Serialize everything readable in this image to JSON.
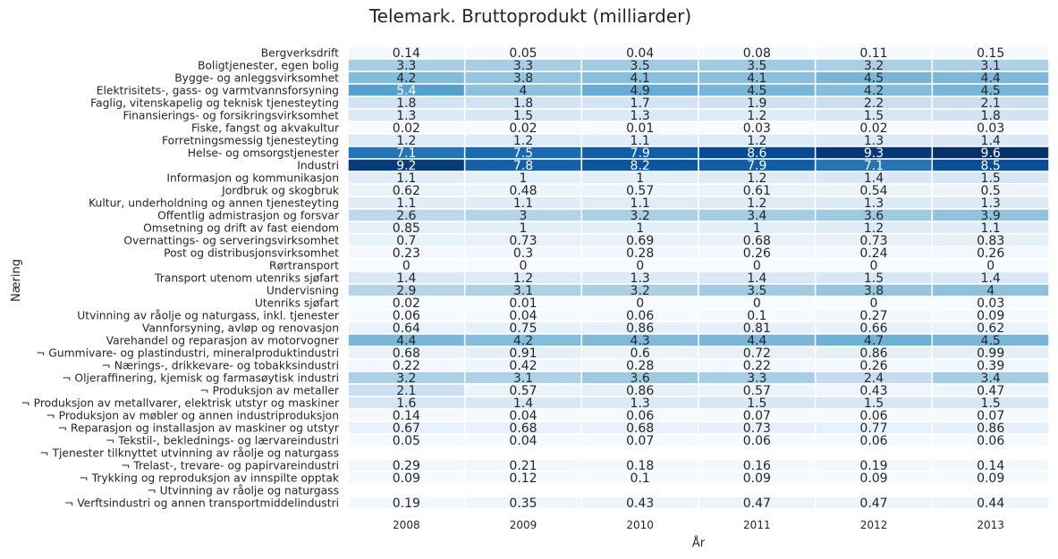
{
  "chart_data": {
    "type": "heatmap",
    "title": "Telemark. Bruttoprodukt (milliarder)",
    "xlabel": "År",
    "ylabel": "Næring",
    "colormap": "Blues",
    "vmin": 0,
    "vmax": 9.6,
    "x": [
      "2008",
      "2009",
      "2010",
      "2011",
      "2012",
      "2013"
    ],
    "rows": [
      {
        "label": "Bergverksdrift",
        "values": [
          "0.14",
          "0.05",
          "0.04",
          "0.08",
          "0.11",
          "0.15"
        ]
      },
      {
        "label": "Boligtjenester, egen bolig",
        "values": [
          "3.3",
          "3.3",
          "3.5",
          "3.5",
          "3.2",
          "3.1"
        ]
      },
      {
        "label": "Bygge- og anleggsvirksomhet",
        "values": [
          "4.2",
          "3.8",
          "4.1",
          "4.1",
          "4.5",
          "4.4"
        ]
      },
      {
        "label": "Elektrisitets-, gass- og varmtvannsforsyning",
        "values": [
          "5.4",
          "4",
          "4.9",
          "4.5",
          "4.2",
          "4.5"
        ]
      },
      {
        "label": "Faglig, vitenskapelig og teknisk tjenesteyting",
        "values": [
          "1.8",
          "1.8",
          "1.7",
          "1.9",
          "2.2",
          "2.1"
        ]
      },
      {
        "label": "Finansierings- og forsikringsvirksomhet",
        "values": [
          "1.3",
          "1.5",
          "1.3",
          "1.2",
          "1.5",
          "1.8"
        ]
      },
      {
        "label": "Fiske, fangst og akvakultur",
        "values": [
          "0.02",
          "0.02",
          "0.01",
          "0.03",
          "0.02",
          "0.03"
        ]
      },
      {
        "label": "Forretningsmessig tjenesteyting",
        "values": [
          "1.2",
          "1.2",
          "1.1",
          "1.2",
          "1.3",
          "1.4"
        ]
      },
      {
        "label": "Helse- og omsorgstjenester",
        "values": [
          "7.1",
          "7.5",
          "7.9",
          "8.6",
          "9.3",
          "9.6"
        ]
      },
      {
        "label": "Industri",
        "values": [
          "9.2",
          "7.8",
          "8.2",
          "7.9",
          "7.1",
          "8.5"
        ]
      },
      {
        "label": "Informasjon og kommunikasjon",
        "values": [
          "1.1",
          "1",
          "1",
          "1.2",
          "1.4",
          "1.5"
        ]
      },
      {
        "label": "Jordbruk og skogbruk",
        "values": [
          "0.62",
          "0.48",
          "0.57",
          "0.61",
          "0.54",
          "0.5"
        ]
      },
      {
        "label": "Kultur, underholdning og annen tjenesteyting",
        "values": [
          "1.1",
          "1.1",
          "1.1",
          "1.2",
          "1.3",
          "1.3"
        ]
      },
      {
        "label": "Offentlig admistrasjon og forsvar",
        "values": [
          "2.6",
          "3",
          "3.2",
          "3.4",
          "3.6",
          "3.9"
        ]
      },
      {
        "label": "Omsetning og drift av fast eiendom",
        "values": [
          "0.85",
          "1",
          "1",
          "1",
          "1.2",
          "1.1"
        ]
      },
      {
        "label": "Overnattings- og serveringsvirksomhet",
        "values": [
          "0.7",
          "0.73",
          "0.69",
          "0.68",
          "0.73",
          "0.83"
        ]
      },
      {
        "label": "Post og distribusjonsvirksomhet",
        "values": [
          "0.23",
          "0.3",
          "0.28",
          "0.26",
          "0.24",
          "0.26"
        ]
      },
      {
        "label": "Rørtransport",
        "values": [
          "0",
          "0",
          "0",
          "0",
          "0",
          "0"
        ]
      },
      {
        "label": "Transport utenom utenriks sjøfart",
        "values": [
          "1.4",
          "1.2",
          "1.3",
          "1.4",
          "1.5",
          "1.4"
        ]
      },
      {
        "label": "Undervisning",
        "values": [
          "2.9",
          "3.1",
          "3.2",
          "3.5",
          "3.8",
          "4"
        ]
      },
      {
        "label": "Utenriks sjøfart",
        "values": [
          "0.02",
          "0.01",
          "0",
          "0",
          "0",
          "0.03"
        ]
      },
      {
        "label": "Utvinning av råolje og naturgass, inkl. tjenester",
        "values": [
          "0.06",
          "0.04",
          "0.06",
          "0.1",
          "0.27",
          "0.09"
        ]
      },
      {
        "label": "Vannforsyning, avløp og renovasjon",
        "values": [
          "0.64",
          "0.75",
          "0.86",
          "0.81",
          "0.66",
          "0.62"
        ]
      },
      {
        "label": "Varehandel og reparasjon av motorvogner",
        "values": [
          "4.4",
          "4.2",
          "4.3",
          "4.4",
          "4.7",
          "4.5"
        ]
      },
      {
        "label": "¬ Gummivare- og plastindustri, mineralproduktindustri",
        "values": [
          "0.68",
          "0.91",
          "0.6",
          "0.72",
          "0.86",
          "0.99"
        ]
      },
      {
        "label": "¬ Nærings-, drikkevare- og tobakksindustri",
        "values": [
          "0.22",
          "0.42",
          "0.28",
          "0.22",
          "0.26",
          "0.39"
        ]
      },
      {
        "label": "¬ Oljeraffinering, kjemisk og farmasøytisk industri",
        "values": [
          "3.2",
          "3.1",
          "3.6",
          "3.3",
          "2.4",
          "3.4"
        ]
      },
      {
        "label": "¬ Produksjon av metaller",
        "values": [
          "2.1",
          "0.57",
          "0.86",
          "0.57",
          "0.43",
          "0.47"
        ]
      },
      {
        "label": "¬ Produksjon av metallvarer, elektrisk utstyr og maskiner",
        "values": [
          "1.6",
          "1.4",
          "1.3",
          "1.5",
          "1.5",
          "1.5"
        ]
      },
      {
        "label": "¬ Produksjon av møbler og annen industriproduksjon",
        "values": [
          "0.14",
          "0.04",
          "0.06",
          "0.07",
          "0.06",
          "0.07"
        ]
      },
      {
        "label": "¬ Reparasjon og installasjon av maskiner og utstyr",
        "values": [
          "0.67",
          "0.68",
          "0.68",
          "0.73",
          "0.77",
          "0.86"
        ]
      },
      {
        "label": "¬ Tekstil-, beklednings- og lærvareindustri",
        "values": [
          "0.05",
          "0.04",
          "0.07",
          "0.06",
          "0.06",
          "0.06"
        ]
      },
      {
        "label": "¬ Tjenester tilknyttet utvinning av råolje og naturgass",
        "values": [
          null,
          null,
          null,
          null,
          null,
          null
        ]
      },
      {
        "label": "¬ Trelast-, trevare- og papirvareindustri",
        "values": [
          "0.29",
          "0.21",
          "0.18",
          "0.16",
          "0.19",
          "0.14"
        ]
      },
      {
        "label": "¬ Trykking og reproduksjon av innspilte opptak",
        "values": [
          "0.09",
          "0.12",
          "0.1",
          "0.09",
          "0.09",
          "0.09"
        ]
      },
      {
        "label": "¬ Utvinning av råolje og naturgass",
        "values": [
          null,
          null,
          null,
          null,
          null,
          null
        ]
      },
      {
        "label": "¬ Verftsindustri og annen transportmiddelindustri",
        "values": [
          "0.19",
          "0.35",
          "0.43",
          "0.47",
          "0.47",
          "0.44"
        ]
      }
    ]
  }
}
